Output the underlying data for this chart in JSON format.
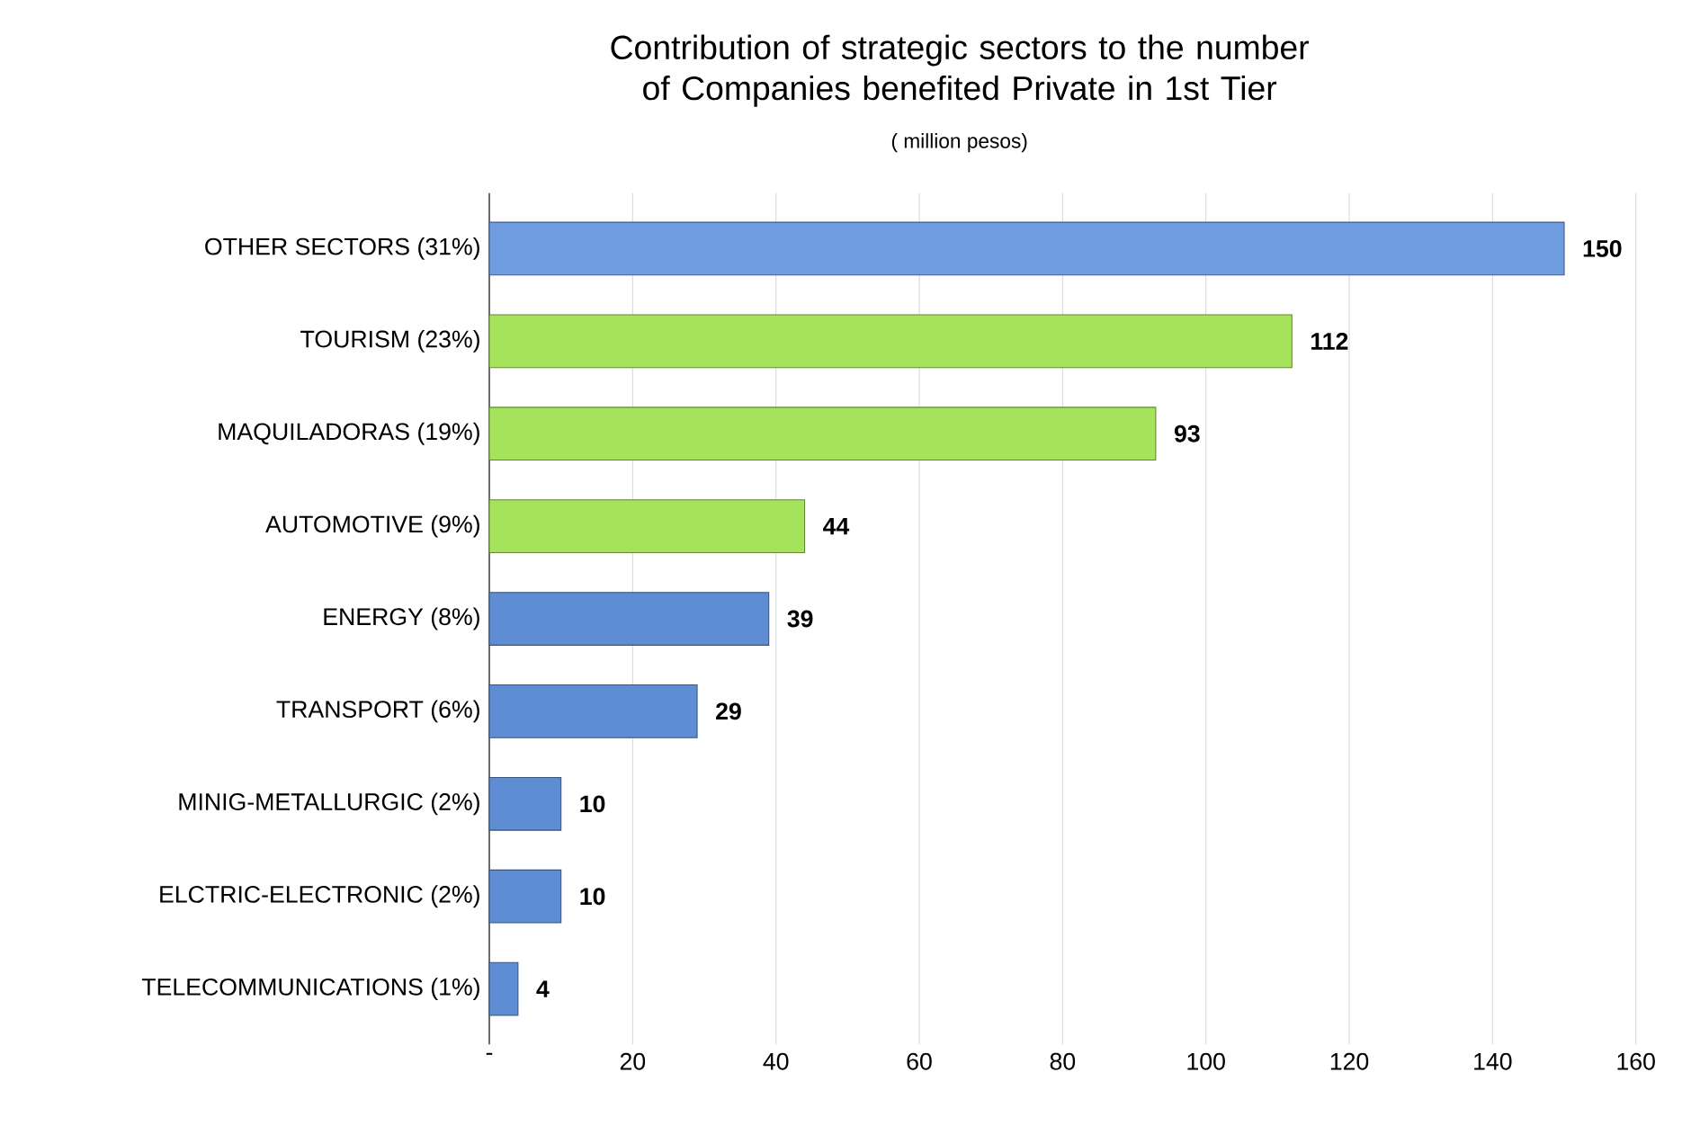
{
  "chart_data": {
    "type": "bar",
    "orientation": "horizontal",
    "title": "Contribution of strategic sectors to the number of Companies benefited Private in 1st Tier",
    "subtitle": "( million pesos)",
    "categories": [
      "OTHER SECTORS (31%)",
      "TOURISM (23%)",
      "MAQUILADORAS (19%)",
      "AUTOMOTIVE (9%)",
      "ENERGY (8%)",
      "TRANSPORT (6%)",
      "MINIG-METALLURGIC (2%)",
      "ELCTRIC-ELECTRONIC (2%)",
      "TELECOMMUNICATIONS (1%)"
    ],
    "values": [
      150,
      112,
      93,
      44,
      39,
      29,
      10,
      10,
      4
    ],
    "colors": [
      "#6f9be0",
      "#a6e35c",
      "#a6e35c",
      "#a6e35c",
      "#5f8dd3",
      "#5f8dd3",
      "#5f8dd3",
      "#5f8dd3",
      "#5f8dd3"
    ],
    "data_labels": true,
    "xlim": [
      0,
      160
    ],
    "xticks": [
      {
        "value": 0,
        "label": "-"
      },
      20,
      40,
      60,
      80,
      100,
      120,
      140,
      160
    ],
    "grid": "x"
  }
}
